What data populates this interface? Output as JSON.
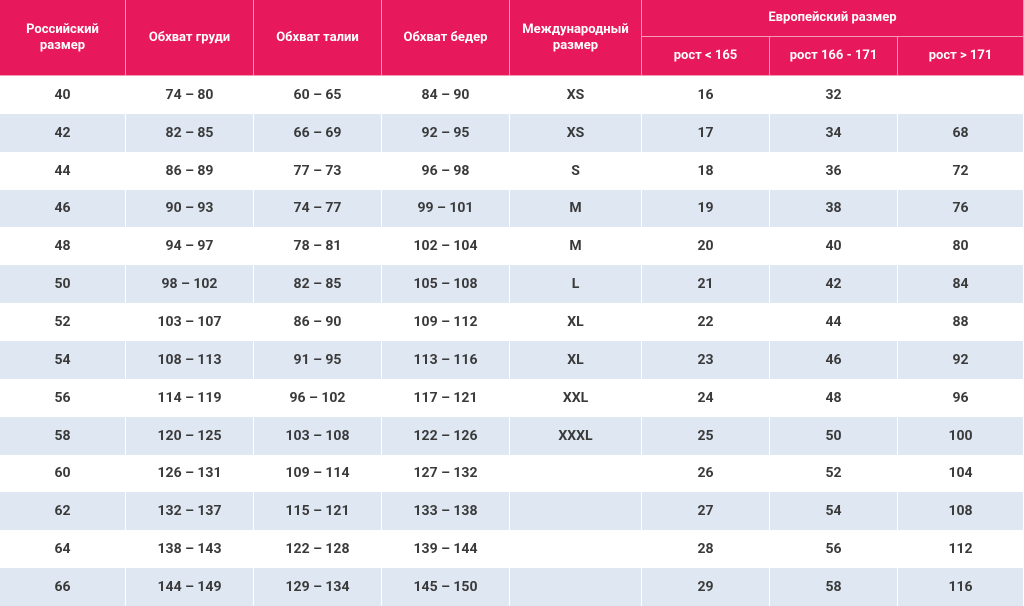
{
  "table": {
    "header": {
      "columns": [
        "Российский размер",
        "Обхват груди",
        "Обхват талии",
        "Обхват бедер",
        "Международный размер"
      ],
      "group": "Европейский размер",
      "subcolumns": [
        "рост < 165",
        "рост 166 - 171",
        "рост > 171"
      ]
    },
    "rows": [
      [
        "40",
        "74 – 80",
        "60 – 65",
        "84 – 90",
        "XS",
        "16",
        "32",
        null
      ],
      [
        "42",
        "82 – 85",
        "66 – 69",
        "92 – 95",
        "XS",
        "17",
        "34",
        "68"
      ],
      [
        "44",
        "86 – 89",
        "77 – 73",
        "96 – 98",
        "S",
        "18",
        "36",
        "72"
      ],
      [
        "46",
        "90 – 93",
        "74 – 77",
        "99 – 101",
        "M",
        "19",
        "38",
        "76"
      ],
      [
        "48",
        "94 – 97",
        "78 – 81",
        "102 – 104",
        "M",
        "20",
        "40",
        "80"
      ],
      [
        "50",
        "98 – 102",
        "82 – 85",
        "105 – 108",
        "L",
        "21",
        "42",
        "84"
      ],
      [
        "52",
        "103 – 107",
        "86 – 90",
        "109 – 112",
        "XL",
        "22",
        "44",
        "88"
      ],
      [
        "54",
        "108 – 113",
        "91 – 95",
        "113 – 116",
        "XL",
        "23",
        "46",
        "92"
      ],
      [
        "56",
        "114 – 119",
        "96 – 102",
        "117 – 121",
        "XXL",
        "24",
        "48",
        "96"
      ],
      [
        "58",
        "120 – 125",
        "103 – 108",
        "122 – 126",
        "XXXL",
        "25",
        "50",
        "100"
      ],
      [
        "60",
        "126 – 131",
        "109 – 114",
        "127 – 132",
        null,
        "26",
        "52",
        "104"
      ],
      [
        "62",
        "132 – 137",
        "115 – 121",
        "133 – 138",
        null,
        "27",
        "54",
        "108"
      ],
      [
        "64",
        "138 – 143",
        "122 – 128",
        "139 – 144",
        null,
        "28",
        "56",
        "112"
      ],
      [
        "66",
        "144 – 149",
        "129 – 134",
        "145 – 150",
        null,
        "29",
        "58",
        "116"
      ]
    ]
  }
}
